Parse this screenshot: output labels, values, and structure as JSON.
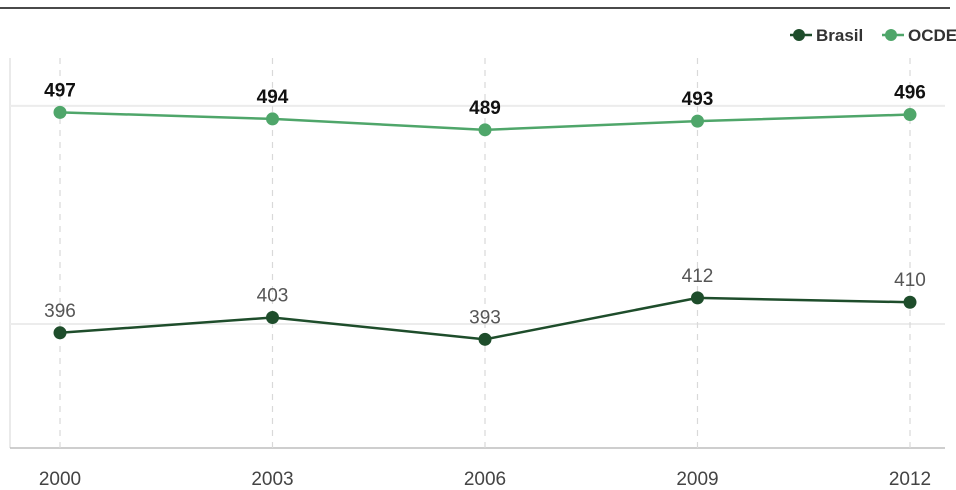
{
  "chart_data": {
    "type": "line",
    "title": "",
    "xlabel": "",
    "ylabel": "",
    "categories": [
      "2000",
      "2003",
      "2006",
      "2009",
      "2012"
    ],
    "ylim": [
      340,
      510
    ],
    "grid": {
      "vertical": "dashed",
      "horizontal": true
    },
    "legend_position": "top-right",
    "series": [
      {
        "name": "Brasil",
        "values": [
          396,
          403,
          393,
          412,
          410
        ],
        "color": "#1e4d2b",
        "label_style": "regular"
      },
      {
        "name": "OCDE",
        "values": [
          497,
          494,
          489,
          493,
          496
        ],
        "color": "#4fa66a",
        "label_style": "bold"
      }
    ]
  }
}
